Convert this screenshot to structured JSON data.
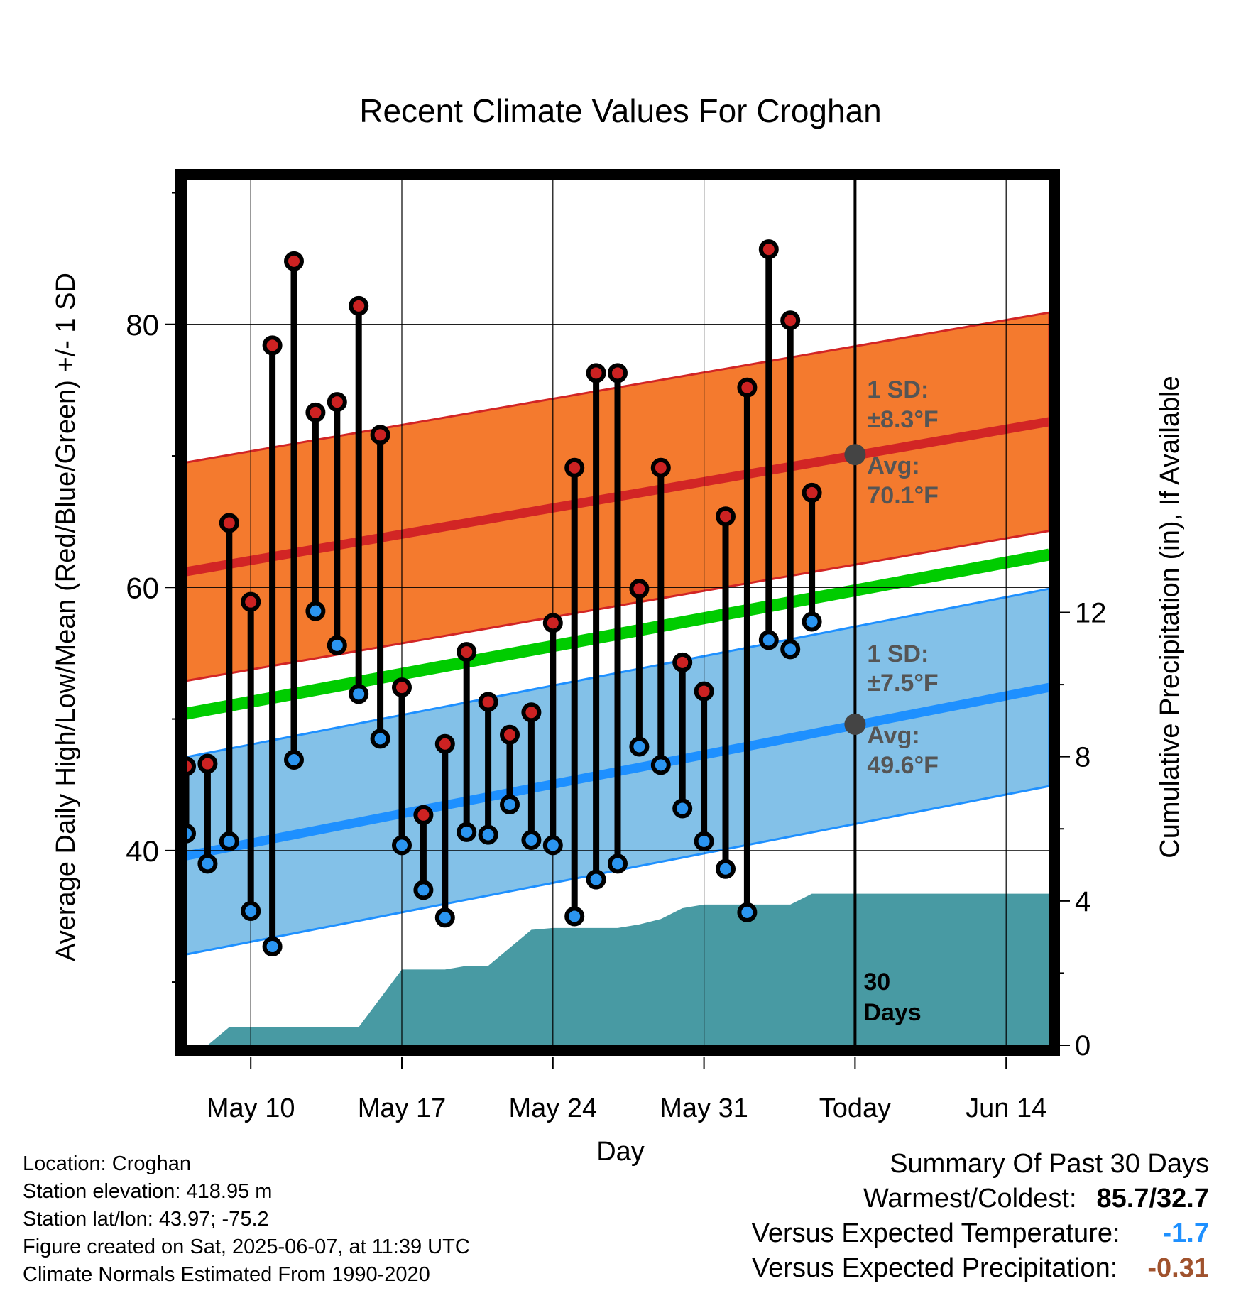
{
  "chart_data": {
    "type": "line",
    "title": "Recent Climate Values For Croghan",
    "xlabel": "Day",
    "ylabel_left": "Average Daily High/Low/Mean (Red/Blue/Green) +/- 1 SD",
    "ylabel_right": "Cumulative Precipitation (in), If Available",
    "x_tick_labels": [
      "May 10",
      "May 17",
      "May 24",
      "May 31",
      "Today",
      "Jun 14"
    ],
    "y_left_ticks": [
      40,
      60,
      80
    ],
    "y_right_ticks": [
      0,
      4,
      8,
      12
    ],
    "ylim_left": [
      25.2,
      91
    ],
    "ylim_right": [
      0,
      24
    ],
    "x_axis": {
      "start_label": "May 7",
      "day_range": [
        -23,
        17
      ]
    },
    "grid": true,
    "days": [
      -23,
      -22,
      -21,
      -20,
      -19,
      -18,
      -17,
      -16,
      -15,
      -14,
      -13,
      -12,
      -11,
      -10,
      -9,
      -8,
      -7,
      -6,
      -5,
      -4,
      -3,
      -2,
      -1,
      0,
      1,
      2,
      3,
      4,
      5,
      6,
      7,
      8,
      9,
      10,
      11,
      12,
      13,
      14,
      15,
      16,
      17
    ],
    "highs": [
      46.4,
      46.6,
      64.9,
      58.9,
      78.4,
      84.8,
      73.3,
      74.1,
      81.4,
      71.6,
      52.4,
      42.7,
      48.1,
      55.1,
      51.3,
      48.8,
      50.5,
      57.3,
      69.1,
      76.3,
      76.3,
      59.9,
      69.1,
      54.3,
      52.1,
      65.4,
      75.2,
      85.7,
      80.3,
      67.2
    ],
    "lows": [
      41.3,
      39.0,
      40.7,
      35.4,
      32.7,
      46.9,
      58.2,
      55.6,
      51.9,
      48.5,
      40.4,
      37.0,
      34.9,
      41.4,
      41.2,
      43.5,
      40.8,
      40.4,
      35.0,
      37.8,
      39.0,
      47.9,
      46.5,
      43.2,
      40.7,
      38.6,
      35.3,
      56.0,
      55.3,
      57.4
    ],
    "normal_high": {
      "avg_start": 61.2,
      "avg_end": 72.6,
      "sd": 8.3
    },
    "normal_low": {
      "avg_start": 39.6,
      "avg_end": 52.4,
      "sd": 7.5
    },
    "normal_mean": {
      "start": 50.4,
      "end": 62.5
    },
    "cumulative_precip": [
      0,
      0,
      0.5,
      0.5,
      0.5,
      0.5,
      0.5,
      0.5,
      0.5,
      1.3,
      2.1,
      2.1,
      2.1,
      2.2,
      2.2,
      2.7,
      3.2,
      3.25,
      3.25,
      3.25,
      3.25,
      3.35,
      3.5,
      3.8,
      3.9,
      3.9,
      3.9,
      3.9,
      3.9,
      4.2,
      4.2,
      4.2,
      4.2,
      4.2,
      4.2,
      4.2,
      4.2,
      4.2,
      4.2,
      4.2,
      4.2
    ],
    "annotations": {
      "high_sd_label": "1 SD:",
      "high_sd_value": "±8.3°F",
      "high_avg_label": "Avg:",
      "high_avg_value": "70.1°F",
      "high_avg_marker": 70.1,
      "low_sd_label": "1 SD:",
      "low_sd_value": "±7.5°F",
      "low_avg_label": "Avg:",
      "low_avg_value": "49.6°F",
      "low_avg_marker": 49.6,
      "days_number": "30",
      "days_word": "Days"
    },
    "colors": {
      "high_band": "#f47a2e",
      "high_line": "#d22525",
      "low_band": "#83c1e8",
      "low_line": "#1e90ff",
      "mean_line": "#00cc00",
      "precip": "#489aa3",
      "high_dot": "#cc2222",
      "low_dot": "#2b95f0",
      "annotation_text": "#555555",
      "marker": "#444444"
    }
  },
  "footer": {
    "location": "Location: Croghan",
    "elevation": "Station elevation: 418.95 m",
    "latlon": "Station lat/lon: 43.97; -75.2",
    "created": "Figure created on Sat, 2025-06-07, at 11:39 UTC",
    "normals": "Climate Normals Estimated From 1990-2020"
  },
  "summary": {
    "title": "Summary Of Past 30 Days",
    "warm_cold_label": "Warmest/Coldest:",
    "warm_cold_value": "85.7/32.7",
    "temp_label": "Versus Expected Temperature:",
    "temp_value": "-1.7",
    "temp_color": "#1e90ff",
    "precip_label": "Versus Expected Precipitation:",
    "precip_value": "-0.31",
    "precip_color": "#a0522d"
  }
}
